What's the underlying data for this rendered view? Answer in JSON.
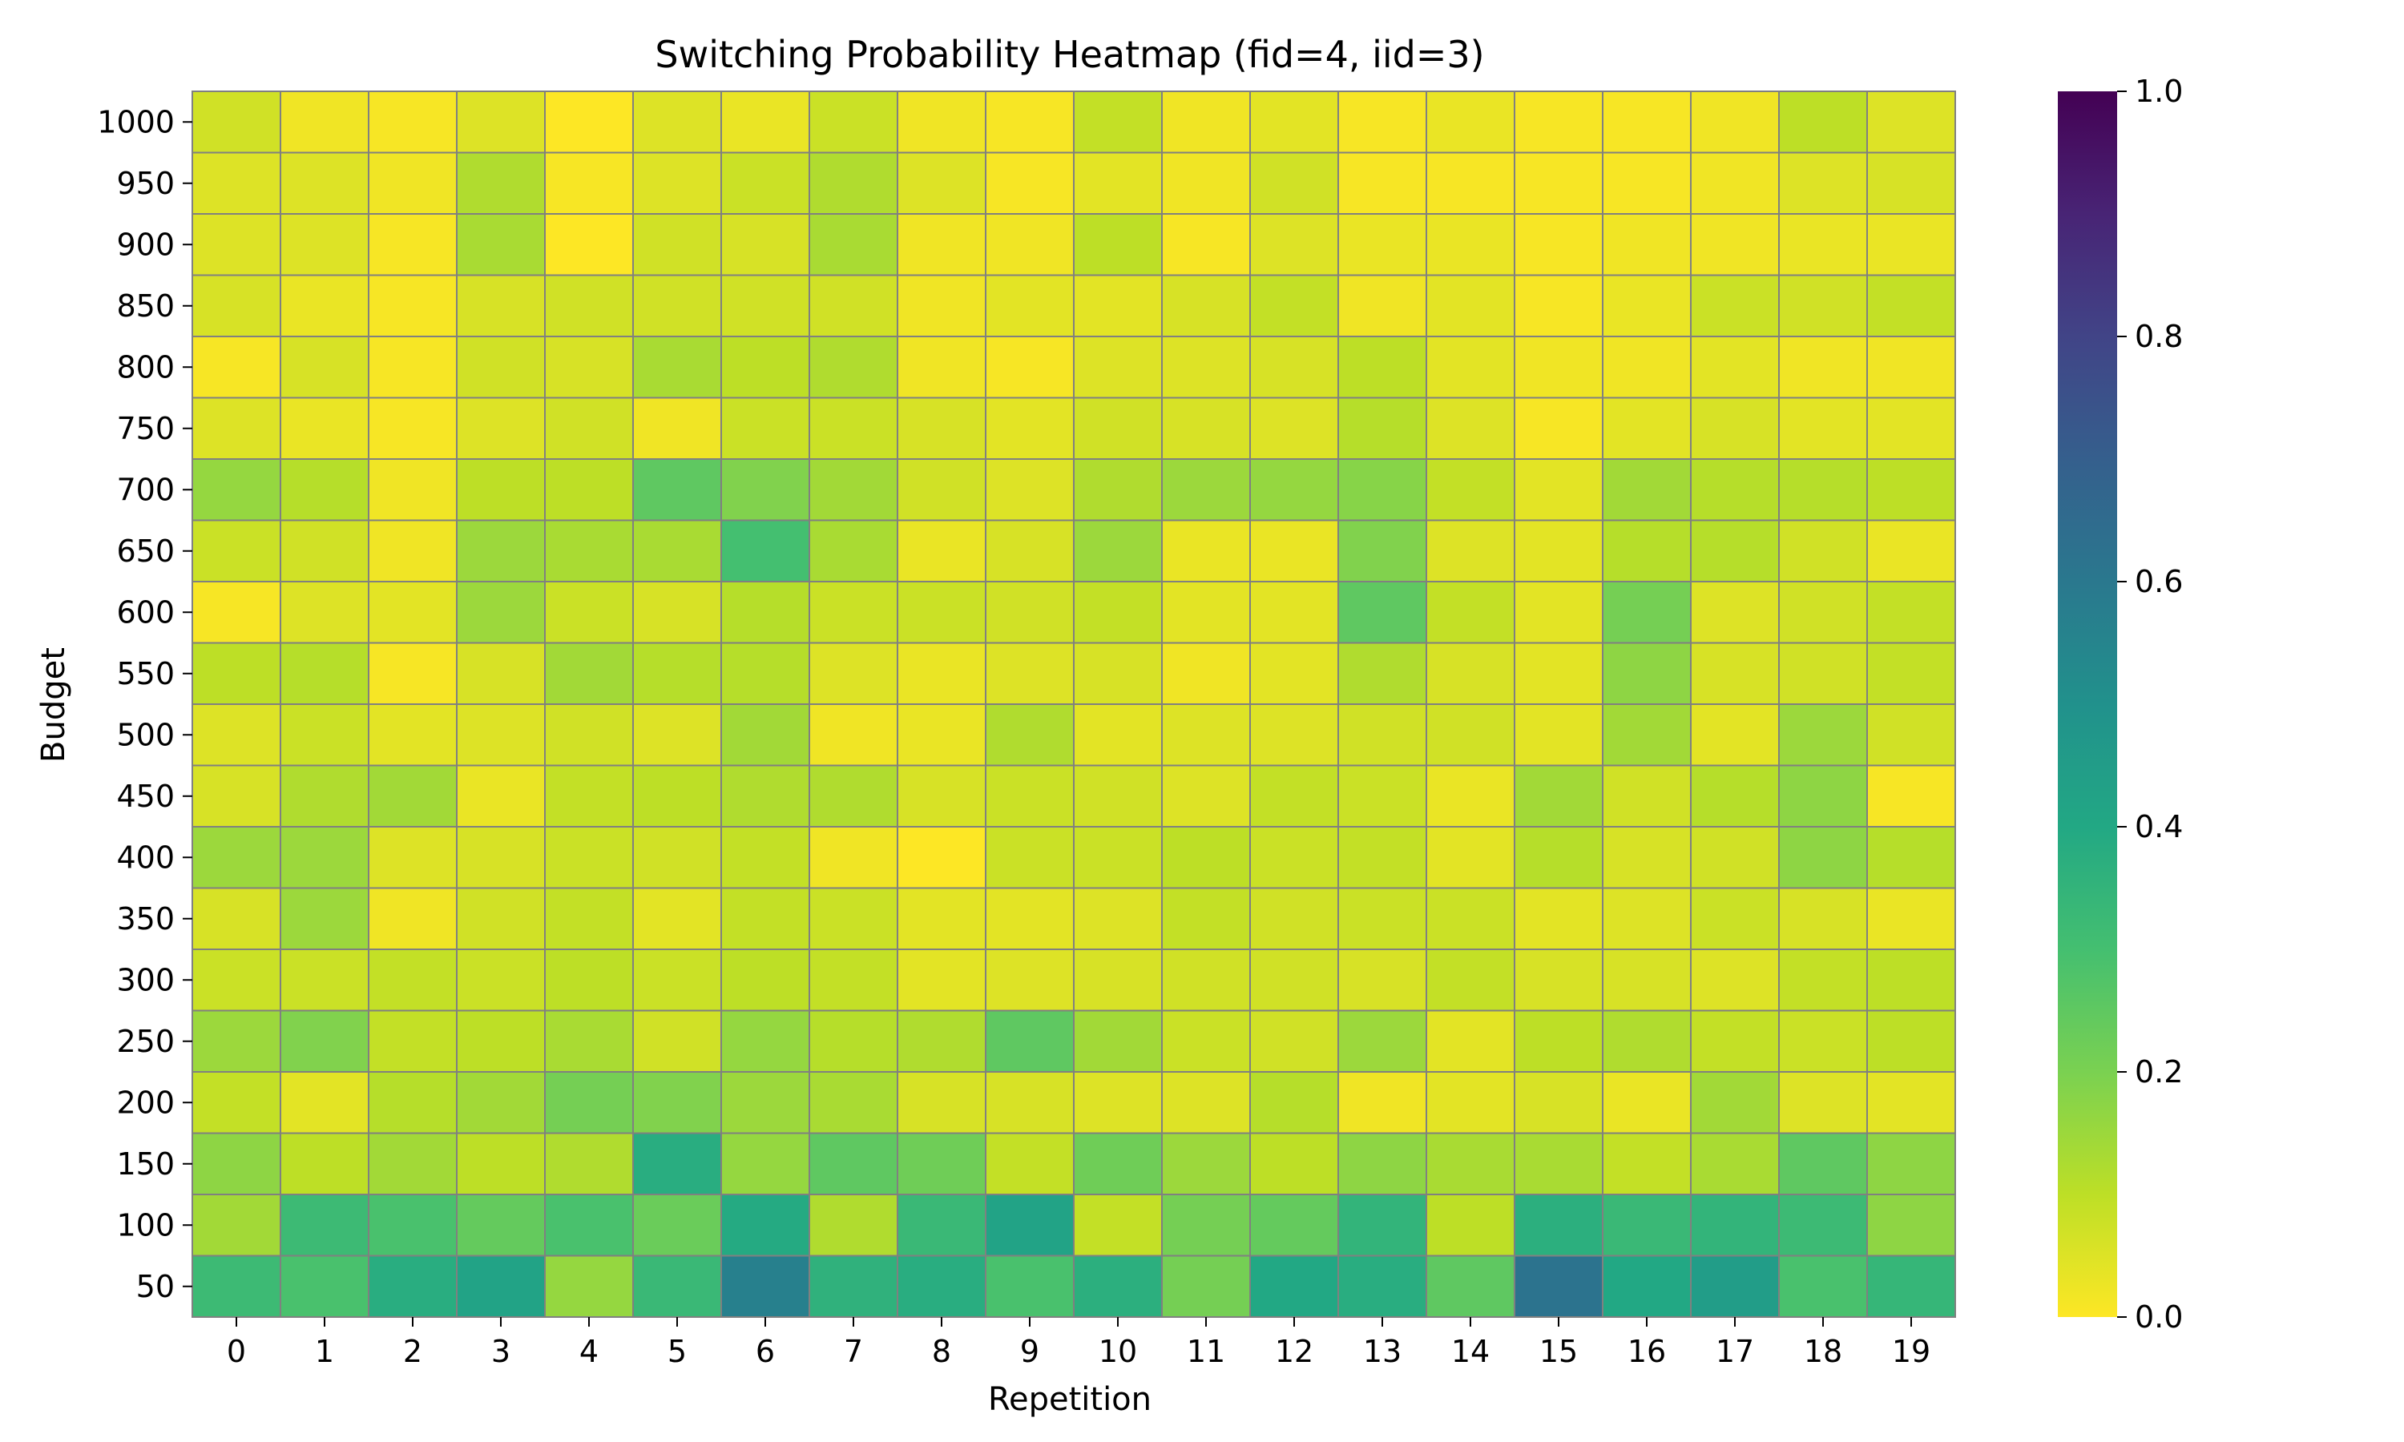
{
  "chart_data": {
    "type": "heatmap",
    "title": "Switching Probability Heatmap (fid=4, iid=3)",
    "xlabel": "Repetition",
    "ylabel": "Budget",
    "x": [
      0,
      1,
      2,
      3,
      4,
      5,
      6,
      7,
      8,
      9,
      10,
      11,
      12,
      13,
      14,
      15,
      16,
      17,
      18,
      19
    ],
    "y": [
      1000,
      950,
      900,
      850,
      800,
      750,
      700,
      650,
      600,
      550,
      500,
      450,
      400,
      350,
      300,
      250,
      200,
      150,
      100,
      50
    ],
    "colorbar": {
      "cmap": "viridis_r",
      "vmin": 0.0,
      "vmax": 1.0,
      "ticks": [
        "0.0",
        "0.2",
        "0.4",
        "0.6",
        "0.8",
        "1.0"
      ]
    },
    "values": [
      [
        0.07,
        0.02,
        0.01,
        0.05,
        0.0,
        0.05,
        0.03,
        0.08,
        0.02,
        0.01,
        0.09,
        0.02,
        0.04,
        0.01,
        0.03,
        0.01,
        0.01,
        0.02,
        0.1,
        0.05
      ],
      [
        0.05,
        0.05,
        0.02,
        0.12,
        0.01,
        0.05,
        0.08,
        0.12,
        0.05,
        0.01,
        0.04,
        0.02,
        0.07,
        0.01,
        0.01,
        0.01,
        0.01,
        0.02,
        0.05,
        0.06
      ],
      [
        0.05,
        0.05,
        0.01,
        0.13,
        0.0,
        0.07,
        0.06,
        0.13,
        0.02,
        0.02,
        0.1,
        0.01,
        0.05,
        0.03,
        0.03,
        0.01,
        0.02,
        0.02,
        0.03,
        0.03
      ],
      [
        0.06,
        0.03,
        0.01,
        0.06,
        0.07,
        0.07,
        0.07,
        0.07,
        0.02,
        0.04,
        0.04,
        0.06,
        0.09,
        0.02,
        0.04,
        0.01,
        0.03,
        0.08,
        0.07,
        0.09
      ],
      [
        0.01,
        0.06,
        0.01,
        0.07,
        0.06,
        0.13,
        0.1,
        0.12,
        0.02,
        0.01,
        0.05,
        0.05,
        0.06,
        0.1,
        0.04,
        0.02,
        0.02,
        0.04,
        0.02,
        0.02
      ],
      [
        0.05,
        0.03,
        0.01,
        0.05,
        0.07,
        0.02,
        0.08,
        0.08,
        0.06,
        0.04,
        0.07,
        0.06,
        0.05,
        0.11,
        0.05,
        0.01,
        0.04,
        0.06,
        0.04,
        0.04
      ],
      [
        0.16,
        0.11,
        0.02,
        0.1,
        0.1,
        0.25,
        0.19,
        0.14,
        0.07,
        0.05,
        0.12,
        0.15,
        0.16,
        0.18,
        0.09,
        0.04,
        0.14,
        0.11,
        0.11,
        0.1
      ],
      [
        0.08,
        0.07,
        0.02,
        0.15,
        0.13,
        0.13,
        0.3,
        0.13,
        0.03,
        0.06,
        0.15,
        0.03,
        0.03,
        0.19,
        0.05,
        0.04,
        0.11,
        0.11,
        0.07,
        0.03
      ],
      [
        0.01,
        0.05,
        0.04,
        0.15,
        0.08,
        0.06,
        0.11,
        0.08,
        0.08,
        0.07,
        0.09,
        0.04,
        0.04,
        0.25,
        0.09,
        0.04,
        0.21,
        0.05,
        0.07,
        0.09
      ],
      [
        0.1,
        0.11,
        0.01,
        0.06,
        0.14,
        0.11,
        0.11,
        0.05,
        0.03,
        0.05,
        0.06,
        0.02,
        0.04,
        0.12,
        0.06,
        0.04,
        0.17,
        0.06,
        0.07,
        0.09
      ],
      [
        0.05,
        0.08,
        0.04,
        0.05,
        0.07,
        0.05,
        0.14,
        0.02,
        0.03,
        0.12,
        0.04,
        0.05,
        0.05,
        0.07,
        0.07,
        0.04,
        0.14,
        0.04,
        0.15,
        0.07
      ],
      [
        0.06,
        0.12,
        0.14,
        0.03,
        0.09,
        0.1,
        0.12,
        0.12,
        0.06,
        0.08,
        0.07,
        0.05,
        0.09,
        0.08,
        0.03,
        0.14,
        0.07,
        0.11,
        0.17,
        0.01
      ],
      [
        0.15,
        0.15,
        0.05,
        0.06,
        0.08,
        0.07,
        0.09,
        0.02,
        0.0,
        0.08,
        0.08,
        0.1,
        0.08,
        0.09,
        0.04,
        0.11,
        0.06,
        0.07,
        0.17,
        0.11
      ],
      [
        0.06,
        0.15,
        0.02,
        0.07,
        0.09,
        0.04,
        0.09,
        0.08,
        0.04,
        0.04,
        0.05,
        0.09,
        0.07,
        0.08,
        0.08,
        0.04,
        0.05,
        0.08,
        0.06,
        0.03
      ],
      [
        0.08,
        0.08,
        0.09,
        0.08,
        0.1,
        0.08,
        0.1,
        0.09,
        0.04,
        0.05,
        0.06,
        0.07,
        0.07,
        0.06,
        0.09,
        0.06,
        0.06,
        0.05,
        0.09,
        0.1
      ],
      [
        0.15,
        0.19,
        0.09,
        0.1,
        0.13,
        0.07,
        0.16,
        0.11,
        0.12,
        0.25,
        0.14,
        0.08,
        0.07,
        0.15,
        0.04,
        0.1,
        0.12,
        0.09,
        0.08,
        0.1
      ],
      [
        0.09,
        0.04,
        0.11,
        0.14,
        0.21,
        0.19,
        0.15,
        0.13,
        0.06,
        0.06,
        0.05,
        0.05,
        0.11,
        0.02,
        0.04,
        0.06,
        0.03,
        0.14,
        0.05,
        0.04
      ],
      [
        0.17,
        0.1,
        0.14,
        0.1,
        0.12,
        0.38,
        0.16,
        0.25,
        0.22,
        0.09,
        0.22,
        0.15,
        0.1,
        0.17,
        0.13,
        0.13,
        0.09,
        0.13,
        0.25,
        0.17
      ],
      [
        0.14,
        0.32,
        0.29,
        0.24,
        0.29,
        0.23,
        0.39,
        0.12,
        0.33,
        0.42,
        0.09,
        0.21,
        0.24,
        0.35,
        0.1,
        0.37,
        0.33,
        0.35,
        0.32,
        0.17
      ],
      [
        0.32,
        0.29,
        0.38,
        0.42,
        0.16,
        0.33,
        0.57,
        0.36,
        0.38,
        0.29,
        0.37,
        0.21,
        0.4,
        0.38,
        0.25,
        0.62,
        0.4,
        0.45,
        0.29,
        0.34
      ]
    ]
  }
}
